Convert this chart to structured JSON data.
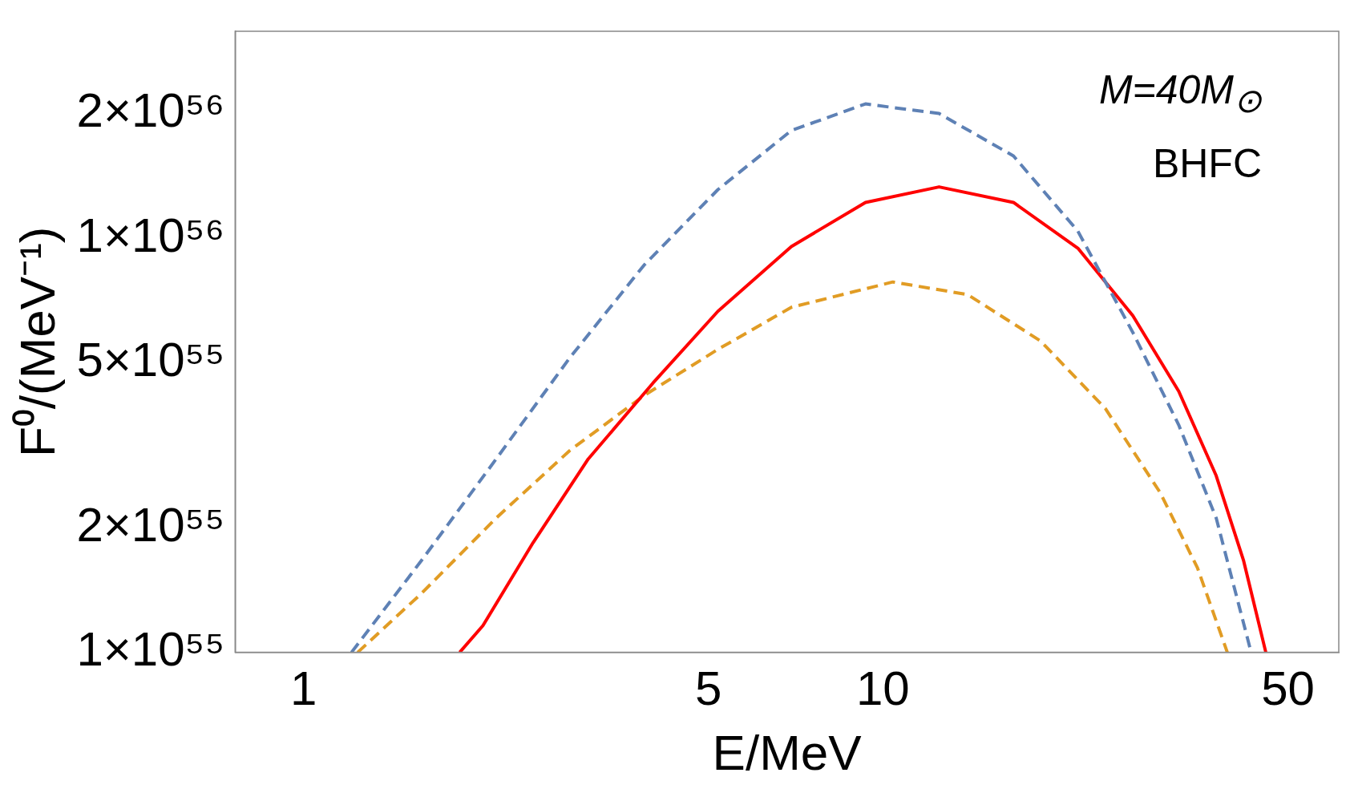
{
  "chart_data": {
    "type": "line",
    "xlabel": "E/MeV",
    "ylabel": "F⁰/(MeV⁻¹)",
    "annotations": [
      "M=40M$_{⊙}$",
      "BHFC"
    ],
    "log": "xy",
    "grid": false,
    "legend": false,
    "marker": "none",
    "xlim": [
      0.762,
      61.2
    ],
    "xticks": [
      1,
      5,
      10,
      50
    ],
    "ylim": [
      1e+55,
      3.16e+56
    ],
    "yticks": [
      {
        "value": 1e+55,
        "label": "1×10⁵⁵"
      },
      {
        "value": 2e+55,
        "label": "2×10⁵⁵"
      },
      {
        "value": 5e+55,
        "label": "5×10⁵⁵"
      },
      {
        "value": 1e+56,
        "label": "1×10⁵⁶"
      },
      {
        "value": 2e+56,
        "label": "2×10⁵⁶"
      }
    ],
    "series": [
      {
        "color": "#5e81b5",
        "line_style": "dashed",
        "x": [
          1.21,
          1.6,
          2.15,
          2.88,
          3.87,
          5.19,
          6.95,
          9.33,
          12.5,
          16.8,
          21.7,
          27.0,
          32.4,
          37.6,
          43.2
        ],
        "values": [
          1e+55,
          1.67e+55,
          2.93e+55,
          5.14e+55,
          8.61e+55,
          1.31e+56,
          1.82e+56,
          2.11e+56,
          2e+56,
          1.58e+56,
          1.04e+56,
          5.92e+55,
          3.54e+55,
          2.11e+55,
          1e+55
        ]
      },
      {
        "color": "#ff0000",
        "line_style": "solid",
        "x": [
          1.86,
          2.04,
          2.49,
          3.1,
          4.01,
          5.19,
          6.95,
          9.33,
          12.5,
          16.8,
          21.7,
          27.0,
          32.4,
          37.6,
          41.9,
          45.8
        ],
        "values": [
          1e+55,
          1.16e+55,
          1.84e+55,
          2.93e+55,
          4.47e+55,
          6.66e+55,
          9.55e+55,
          1.22e+56,
          1.33e+56,
          1.22e+56,
          9.46e+55,
          6.5e+55,
          4.27e+55,
          2.67e+55,
          1.67e+55,
          1e+55
        ]
      },
      {
        "color": "#e19c24",
        "line_style": "dashed",
        "x": [
          1.24,
          1.6,
          2.15,
          2.88,
          3.87,
          5.19,
          6.95,
          10.4,
          14.0,
          18.7,
          24.2,
          30.1,
          34.9,
          39.3
        ],
        "values": [
          1e+55,
          1.39e+55,
          2.11e+55,
          3.07e+55,
          4.17e+55,
          5.39e+55,
          6.81e+55,
          7.84e+55,
          7.31e+55,
          5.65e+55,
          3.88e+55,
          2.43e+55,
          1.6e+55,
          1e+55
        ]
      }
    ]
  }
}
